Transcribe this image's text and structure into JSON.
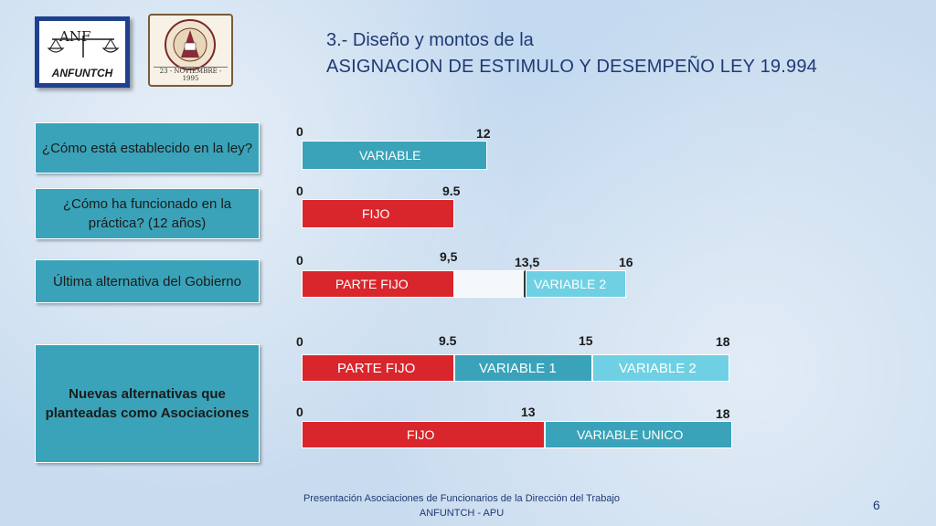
{
  "logo": {
    "monogram": "ANF",
    "name": "ANFUNTCH"
  },
  "seal": {
    "date": "23 - NOVIEMBRE - 1995"
  },
  "title": {
    "line1": "3.- Diseño y montos de la",
    "line2": "ASIGNACION DE ESTIMULO Y DESEMPEÑO LEY 19.994"
  },
  "questions": [
    "¿Cómo está establecido en la ley?",
    "¿Cómo ha funcionado en la práctica? (12 años)",
    "Última alternativa del Gobierno",
    "Nuevas alternativas que planteadas como Asociaciones"
  ],
  "rows": {
    "r1": {
      "n0": "0",
      "n1": "12",
      "bar": "VARIABLE"
    },
    "r2": {
      "n0": "0",
      "n1": "9.5",
      "bar": "FIJO"
    },
    "r3": {
      "n0": "0",
      "n1": "9,5",
      "n2": "13,5",
      "n3": "16",
      "bar1": "PARTE FIJO",
      "bar2": "VARIABLE 2"
    },
    "r4": {
      "n0": "0",
      "n1": "9.5",
      "n2": "15",
      "n3": "18",
      "bar1": "PARTE FIJO",
      "bar2": "VARIABLE  1",
      "bar3": "VARIABLE 2"
    },
    "r5": {
      "n0": "0",
      "n1": "13",
      "n2": "18",
      "bar1": "FIJO",
      "bar2": "VARIABLE  UNICO"
    }
  },
  "colors": {
    "fijo": "#d9262c",
    "variable": "#3aa3b9",
    "variable2": "#6fd0e3",
    "title": "#1f3a74"
  },
  "footer": {
    "line1": "Presentación Asociaciones de Funcionarios de la Dirección del Trabajo",
    "line2": "ANFUNTCH - APU"
  },
  "page_number": "6"
}
